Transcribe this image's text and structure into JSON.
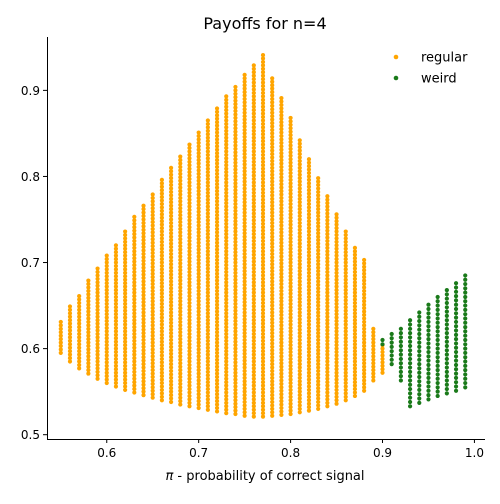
{
  "chart_data": {
    "type": "scatter",
    "title": "Payoffs for n=4",
    "xlabel_symbol": "π",
    "xlabel_text": " - probability of correct signal",
    "ylabel": "",
    "xlim": [
      0.535,
      1.0115
    ],
    "ylim": [
      0.495,
      0.962
    ],
    "x_ticks": [
      0.6,
      0.7,
      0.8,
      0.9,
      1.0
    ],
    "x_tick_labels": [
      "0.6",
      "0.7",
      "0.8",
      "0.9",
      "1.0"
    ],
    "y_ticks": [
      0.5,
      0.6,
      0.7,
      0.8,
      0.9
    ],
    "y_tick_labels": [
      "0.5",
      "0.6",
      "0.7",
      "0.8",
      "0.9"
    ],
    "grid": false,
    "legend_position": "top-right",
    "series": [
      {
        "name": "regular",
        "color": "#FFA500",
        "point_spacing": 0.004,
        "columns": [
          {
            "x": 0.55,
            "ymin": 0.595,
            "ymax": 0.632
          },
          {
            "x": 0.56,
            "ymin": 0.585,
            "ymax": 0.647
          },
          {
            "x": 0.57,
            "ymin": 0.577,
            "ymax": 0.662
          },
          {
            "x": 0.58,
            "ymin": 0.571,
            "ymax": 0.678
          },
          {
            "x": 0.59,
            "ymin": 0.565,
            "ymax": 0.692
          },
          {
            "x": 0.6,
            "ymin": 0.56,
            "ymax": 0.707
          },
          {
            "x": 0.61,
            "ymin": 0.556,
            "ymax": 0.722
          },
          {
            "x": 0.62,
            "ymin": 0.552,
            "ymax": 0.737
          },
          {
            "x": 0.63,
            "ymin": 0.549,
            "ymax": 0.752
          },
          {
            "x": 0.64,
            "ymin": 0.546,
            "ymax": 0.766
          },
          {
            "x": 0.65,
            "ymin": 0.543,
            "ymax": 0.781
          },
          {
            "x": 0.66,
            "ymin": 0.54,
            "ymax": 0.795
          },
          {
            "x": 0.67,
            "ymin": 0.538,
            "ymax": 0.81
          },
          {
            "x": 0.68,
            "ymin": 0.535,
            "ymax": 0.824
          },
          {
            "x": 0.69,
            "ymin": 0.533,
            "ymax": 0.838
          },
          {
            "x": 0.7,
            "ymin": 0.531,
            "ymax": 0.851
          },
          {
            "x": 0.71,
            "ymin": 0.529,
            "ymax": 0.865
          },
          {
            "x": 0.72,
            "ymin": 0.527,
            "ymax": 0.878
          },
          {
            "x": 0.73,
            "ymin": 0.525,
            "ymax": 0.891
          },
          {
            "x": 0.74,
            "ymin": 0.524,
            "ymax": 0.904
          },
          {
            "x": 0.75,
            "ymin": 0.522,
            "ymax": 0.916
          },
          {
            "x": 0.76,
            "ymin": 0.521,
            "ymax": 0.928
          },
          {
            "x": 0.77,
            "ymin": 0.521,
            "ymax": 0.94
          },
          {
            "x": 0.78,
            "ymin": 0.522,
            "ymax": 0.915
          },
          {
            "x": 0.79,
            "ymin": 0.523,
            "ymax": 0.891
          },
          {
            "x": 0.8,
            "ymin": 0.524,
            "ymax": 0.867
          },
          {
            "x": 0.81,
            "ymin": 0.526,
            "ymax": 0.843
          },
          {
            "x": 0.82,
            "ymin": 0.528,
            "ymax": 0.82
          },
          {
            "x": 0.83,
            "ymin": 0.53,
            "ymax": 0.798
          },
          {
            "x": 0.84,
            "ymin": 0.533,
            "ymax": 0.777
          },
          {
            "x": 0.85,
            "ymin": 0.536,
            "ymax": 0.757
          },
          {
            "x": 0.86,
            "ymin": 0.54,
            "ymax": 0.738
          },
          {
            "x": 0.87,
            "ymin": 0.545,
            "ymax": 0.719
          },
          {
            "x": 0.88,
            "ymin": 0.551,
            "ymax": 0.702
          },
          {
            "x": 0.89,
            "ymin": 0.563,
            "ymax": 0.622
          },
          {
            "x": 0.9,
            "ymin": 0.572,
            "ymax": 0.602
          }
        ]
      },
      {
        "name": "weird",
        "color": "#1A7A1A",
        "point_spacing": 0.005,
        "columns": [
          {
            "x": 0.9,
            "ymin": 0.605,
            "ymax": 0.61
          },
          {
            "x": 0.91,
            "ymin": 0.582,
            "ymax": 0.618
          },
          {
            "x": 0.92,
            "ymin": 0.563,
            "ymax": 0.625
          },
          {
            "x": 0.93,
            "ymin": 0.533,
            "ymax": 0.632
          },
          {
            "x": 0.94,
            "ymin": 0.537,
            "ymax": 0.64
          },
          {
            "x": 0.95,
            "ymin": 0.541,
            "ymax": 0.649
          },
          {
            "x": 0.96,
            "ymin": 0.545,
            "ymax": 0.658
          },
          {
            "x": 0.97,
            "ymin": 0.548,
            "ymax": 0.667
          },
          {
            "x": 0.98,
            "ymin": 0.551,
            "ymax": 0.675
          },
          {
            "x": 0.99,
            "ymin": 0.555,
            "ymax": 0.683
          }
        ]
      }
    ]
  }
}
